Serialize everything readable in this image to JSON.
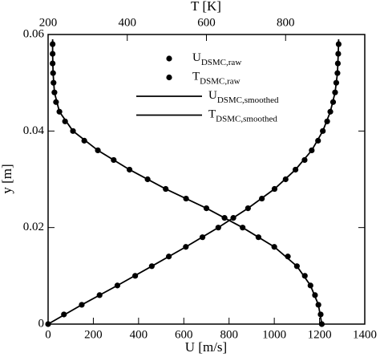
{
  "chart_data": {
    "type": "scatter",
    "xlabel": "U [m/s]",
    "x2label": "T [K]",
    "ylabel": "y [m]",
    "xlim": [
      0,
      1400
    ],
    "xticks": [
      0,
      200,
      400,
      600,
      800,
      1000,
      1200,
      1400
    ],
    "x2lim": [
      200,
      1000
    ],
    "x2ticks": [
      200,
      400,
      600,
      800
    ],
    "ylim": [
      0,
      0.06
    ],
    "yticks": [
      0,
      0.02,
      0.04,
      0.06
    ],
    "series": [
      {
        "name": "U",
        "subscript": "DSMC,raw",
        "kind": "markers",
        "axis": "x",
        "color": "#000000",
        "y": [
          0,
          0.002,
          0.004,
          0.006,
          0.008,
          0.01,
          0.012,
          0.014,
          0.016,
          0.018,
          0.02,
          0.022,
          0.024,
          0.026,
          0.028,
          0.03,
          0.032,
          0.034,
          0.036,
          0.038,
          0.04,
          0.042,
          0.044,
          0.046,
          0.048,
          0.05,
          0.052,
          0.054,
          0.056,
          0.058
        ],
        "x": [
          1210,
          1205,
          1195,
          1180,
          1160,
          1135,
          1100,
          1060,
          1000,
          930,
          860,
          780,
          700,
          610,
          520,
          440,
          360,
          290,
          220,
          160,
          110,
          75,
          50,
          35,
          28,
          24,
          22,
          20,
          20,
          20
        ]
      },
      {
        "name": "T",
        "subscript": "DSMC,raw",
        "kind": "markers",
        "axis": "x2",
        "color": "#000000",
        "y": [
          0,
          0.002,
          0.004,
          0.006,
          0.008,
          0.01,
          0.012,
          0.014,
          0.016,
          0.018,
          0.02,
          0.022,
          0.024,
          0.026,
          0.028,
          0.03,
          0.032,
          0.034,
          0.036,
          0.038,
          0.04,
          0.042,
          0.044,
          0.046,
          0.048,
          0.05,
          0.052,
          0.054,
          0.056,
          0.058
        ],
        "x": [
          200,
          240,
          285,
          330,
          375,
          420,
          462,
          505,
          548,
          590,
          630,
          668,
          705,
          740,
          772,
          800,
          825,
          848,
          866,
          882,
          894,
          905,
          913,
          920,
          925,
          928,
          931,
          932,
          933,
          934
        ]
      },
      {
        "name": "U",
        "subscript": "DSMC,smoothed",
        "kind": "line",
        "axis": "x",
        "color": "#000000",
        "y": [
          0,
          0.004,
          0.008,
          0.012,
          0.016,
          0.02,
          0.024,
          0.028,
          0.032,
          0.036,
          0.04,
          0.044,
          0.048,
          0.052,
          0.056,
          0.059
        ],
        "x": [
          1210,
          1195,
          1160,
          1100,
          1000,
          860,
          700,
          520,
          360,
          220,
          110,
          50,
          28,
          22,
          20,
          20
        ]
      },
      {
        "name": "T",
        "subscript": "DSMC,smoothed",
        "kind": "line",
        "axis": "x2",
        "color": "#000000",
        "y": [
          0,
          0.004,
          0.008,
          0.012,
          0.016,
          0.02,
          0.024,
          0.028,
          0.032,
          0.036,
          0.04,
          0.044,
          0.048,
          0.052,
          0.056,
          0.059
        ],
        "x": [
          200,
          285,
          375,
          462,
          548,
          630,
          705,
          772,
          825,
          866,
          894,
          913,
          925,
          931,
          933,
          934
        ]
      }
    ]
  }
}
